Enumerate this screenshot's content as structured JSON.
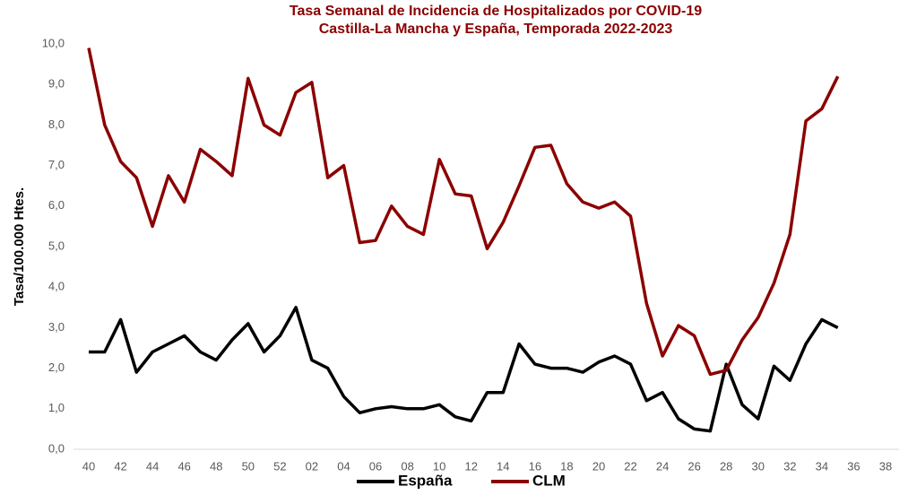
{
  "chart_data": {
    "type": "line",
    "title": "Tasa Semanal de Incidencia de Hospitalizados por COVID-19",
    "subtitle": "Castilla-La Mancha y España, Temporada 2022-2023",
    "y_label": "Tasa/100.000 Htes.",
    "categories": [
      "40",
      null,
      "42",
      null,
      "44",
      null,
      "46",
      null,
      "48",
      null,
      "50",
      null,
      "52",
      null,
      "02",
      null,
      "04",
      null,
      "06",
      null,
      "08",
      null,
      "10",
      null,
      "12",
      null,
      "14",
      null,
      "16",
      null,
      "18",
      null,
      "20",
      null,
      "22",
      null,
      "24",
      null,
      "26",
      null,
      "28",
      null,
      "30",
      null,
      "32",
      null,
      "34",
      null,
      "36",
      null,
      "38"
    ],
    "series": [
      {
        "name": "España",
        "color": "#000000",
        "values": [
          2.4,
          2.4,
          3.2,
          1.9,
          2.4,
          2.6,
          2.8,
          2.4,
          2.2,
          2.7,
          3.1,
          2.4,
          2.8,
          3.5,
          2.2,
          2.0,
          1.3,
          0.9,
          1.0,
          1.05,
          1.0,
          1.0,
          1.1,
          0.8,
          0.7,
          1.4,
          1.4,
          2.6,
          2.1,
          2.0,
          2.0,
          1.9,
          2.15,
          2.3,
          2.1,
          1.2,
          1.4,
          0.75,
          0.5,
          0.45,
          2.1,
          1.1,
          0.75,
          2.05,
          1.7,
          2.6,
          3.2,
          3.0,
          null,
          null,
          null
        ]
      },
      {
        "name": "CLM",
        "color": "#8b0000",
        "values": [
          9.9,
          8.0,
          7.1,
          6.7,
          5.5,
          6.75,
          6.1,
          7.4,
          7.1,
          6.75,
          9.15,
          8.0,
          7.75,
          8.8,
          9.05,
          6.7,
          7.0,
          5.1,
          5.15,
          6.0,
          5.5,
          5.3,
          7.15,
          6.3,
          6.25,
          4.95,
          5.6,
          6.5,
          7.45,
          7.5,
          6.55,
          6.1,
          5.95,
          6.1,
          5.75,
          3.6,
          2.3,
          3.05,
          2.8,
          1.85,
          1.95,
          2.7,
          3.25,
          4.1,
          5.3,
          8.1,
          8.4,
          9.2,
          null,
          null,
          null
        ]
      }
    ],
    "ylim": [
      0,
      10
    ],
    "yticks": [
      {
        "value": 0,
        "label": "0,0"
      },
      {
        "value": 1,
        "label": "1,0"
      },
      {
        "value": 2,
        "label": "2,0"
      },
      {
        "value": 3,
        "label": "3,0"
      },
      {
        "value": 4,
        "label": "4,0"
      },
      {
        "value": 5,
        "label": "5,0"
      },
      {
        "value": 6,
        "label": "6,0"
      },
      {
        "value": 7,
        "label": "7,0"
      },
      {
        "value": 8,
        "label": "8,0"
      },
      {
        "value": 9,
        "label": "9,0"
      },
      {
        "value": 10,
        "label": "10,0"
      }
    ],
    "legend": "bottom"
  }
}
